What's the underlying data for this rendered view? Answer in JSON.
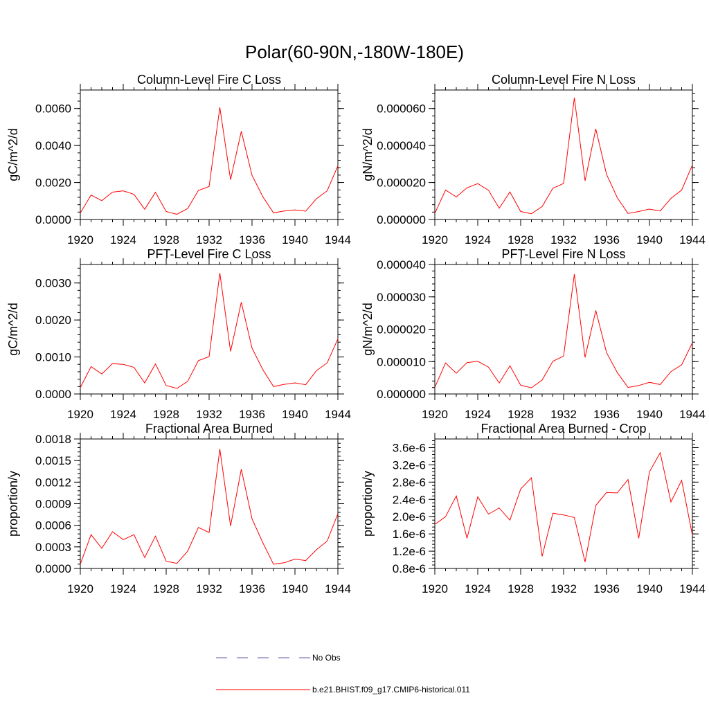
{
  "title": "Polar(60-90N,-180W-180E)",
  "colors": {
    "series": "#ff0000",
    "obs": "#5a5aa8",
    "axis": "#000000"
  },
  "legend": {
    "position": "bottom-center",
    "entries": [
      {
        "label": "No Obs",
        "color": "#5a5aa8",
        "style": "dashed"
      },
      {
        "label": "b.e21.BHIST.f09_g17.CMIP6-historical.011",
        "color": "#ff0000",
        "style": "solid"
      }
    ]
  },
  "chart_data": [
    {
      "type": "line",
      "title": "Column-Level Fire C Loss",
      "ylabel": "gC/m^2/d",
      "xlabel": "",
      "xlim": [
        1920,
        1944
      ],
      "ylim": [
        0,
        0.007
      ],
      "xticks": [
        "1920",
        "1924",
        "1928",
        "1932",
        "1936",
        "1940",
        "1944"
      ],
      "yticks": [
        "0.0000",
        "0.0020",
        "0.0040",
        "0.0060"
      ],
      "ytick_values": [
        0,
        0.002,
        0.004,
        0.006
      ],
      "x": [
        1920,
        1921,
        1922,
        1923,
        1924,
        1925,
        1926,
        1927,
        1928,
        1929,
        1930,
        1931,
        1932,
        1933,
        1934,
        1935,
        1936,
        1937,
        1938,
        1939,
        1940,
        1941,
        1942,
        1943,
        1944
      ],
      "series": [
        {
          "name": "b.e21.BHIST.f09_g17.CMIP6-historical.011",
          "values": [
            0.00035,
            0.00132,
            0.00102,
            0.00148,
            0.00155,
            0.00136,
            0.00055,
            0.00147,
            0.00043,
            0.00028,
            0.00059,
            0.00157,
            0.00178,
            0.00606,
            0.00215,
            0.00477,
            0.00239,
            0.00124,
            0.00036,
            0.00046,
            0.00052,
            0.00045,
            0.00112,
            0.00155,
            0.0029
          ]
        }
      ]
    },
    {
      "type": "line",
      "title": "Column-Level Fire N Loss",
      "ylabel": "gN/m^2/d",
      "xlabel": "",
      "xlim": [
        1920,
        1944
      ],
      "ylim": [
        0,
        7e-05
      ],
      "xticks": [
        "1920",
        "1924",
        "1928",
        "1932",
        "1936",
        "1940",
        "1944"
      ],
      "yticks": [
        "0.000000",
        "0.000020",
        "0.000040",
        "0.000060"
      ],
      "ytick_values": [
        0,
        2e-05,
        4e-05,
        6e-05
      ],
      "x": [
        1920,
        1921,
        1922,
        1923,
        1924,
        1925,
        1926,
        1927,
        1928,
        1929,
        1930,
        1931,
        1932,
        1933,
        1934,
        1935,
        1936,
        1937,
        1938,
        1939,
        1940,
        1941,
        1942,
        1943,
        1944
      ],
      "series": [
        {
          "name": "b.e21.BHIST.f09_g17.CMIP6-historical.011",
          "values": [
            3.3e-06,
            1.59e-05,
            1.22e-05,
            1.71e-05,
            1.94e-05,
            1.58e-05,
            6.1e-06,
            1.49e-05,
            4.3e-06,
            3.1e-06,
            7e-06,
            1.69e-05,
            1.95e-05,
            6.58e-05,
            2.09e-05,
            4.9e-05,
            2.44e-05,
            1.18e-05,
            3.3e-06,
            4.3e-06,
            5.6e-06,
            4.6e-06,
            1.14e-05,
            1.59e-05,
            2.95e-05
          ]
        }
      ]
    },
    {
      "type": "line",
      "title": "PFT-Level Fire C Loss",
      "ylabel": "gC/m^2/d",
      "xlabel": "",
      "xlim": [
        1920,
        1944
      ],
      "ylim": [
        0,
        0.0035
      ],
      "xticks": [
        "1920",
        "1924",
        "1928",
        "1932",
        "1936",
        "1940",
        "1944"
      ],
      "yticks": [
        "0.0000",
        "0.0010",
        "0.0020",
        "0.0030"
      ],
      "ytick_values": [
        0,
        0.001,
        0.002,
        0.003
      ],
      "x": [
        1920,
        1921,
        1922,
        1923,
        1924,
        1925,
        1926,
        1927,
        1928,
        1929,
        1930,
        1931,
        1932,
        1933,
        1934,
        1935,
        1936,
        1937,
        1938,
        1939,
        1940,
        1941,
        1942,
        1943,
        1944
      ],
      "series": [
        {
          "name": "b.e21.BHIST.f09_g17.CMIP6-historical.011",
          "values": [
            0.00017,
            0.00074,
            0.00054,
            0.00082,
            0.0008,
            0.00072,
            0.0003,
            0.00081,
            0.00023,
            0.00015,
            0.00034,
            0.0009,
            0.00101,
            0.00327,
            0.00115,
            0.00248,
            0.00124,
            0.00066,
            0.0002,
            0.00026,
            0.0003,
            0.00025,
            0.00063,
            0.00084,
            0.00149
          ]
        }
      ]
    },
    {
      "type": "line",
      "title": "PFT-Level Fire N Loss",
      "ylabel": "gN/m^2/d",
      "xlabel": "",
      "xlim": [
        1920,
        1944
      ],
      "ylim": [
        0,
        4e-05
      ],
      "xticks": [
        "1920",
        "1924",
        "1928",
        "1932",
        "1936",
        "1940",
        "1944"
      ],
      "yticks": [
        "0.000000",
        "0.000010",
        "0.000020",
        "0.000030",
        "0.000040"
      ],
      "ytick_values": [
        0,
        1e-05,
        2e-05,
        3e-05,
        4e-05
      ],
      "x": [
        1920,
        1921,
        1922,
        1923,
        1924,
        1925,
        1926,
        1927,
        1928,
        1929,
        1930,
        1931,
        1932,
        1933,
        1934,
        1935,
        1936,
        1937,
        1938,
        1939,
        1940,
        1941,
        1942,
        1943,
        1944
      ],
      "series": [
        {
          "name": "b.e21.BHIST.f09_g17.CMIP6-historical.011",
          "values": [
            2e-06,
            9.6e-06,
            6.4e-06,
            9.7e-06,
            1.01e-05,
            8.3e-06,
            3.4e-06,
            8.7e-06,
            2.7e-06,
            1.9e-06,
            4.3e-06,
            1.01e-05,
            1.17e-05,
            3.7e-05,
            1.13e-05,
            2.58e-05,
            1.28e-05,
            6.6e-06,
            2e-06,
            2.6e-06,
            3.6e-06,
            2.9e-06,
            6.9e-06,
            9e-06,
            1.58e-05
          ]
        }
      ]
    },
    {
      "type": "line",
      "title": "Fractional Area Burned",
      "ylabel": "proportion/y",
      "xlabel": "",
      "xlim": [
        1920,
        1944
      ],
      "ylim": [
        0,
        0.0018
      ],
      "xticks": [
        "1920",
        "1924",
        "1928",
        "1932",
        "1936",
        "1940",
        "1944"
      ],
      "yticks": [
        "0.0000",
        "0.0003",
        "0.0006",
        "0.0009",
        "0.0012",
        "0.0015",
        "0.0018"
      ],
      "ytick_values": [
        0,
        0.0003,
        0.0006,
        0.0009,
        0.0012,
        0.0015,
        0.0018
      ],
      "x": [
        1920,
        1921,
        1922,
        1923,
        1924,
        1925,
        1926,
        1927,
        1928,
        1929,
        1930,
        1931,
        1932,
        1933,
        1934,
        1935,
        1936,
        1937,
        1938,
        1939,
        1940,
        1941,
        1942,
        1943,
        1944
      ],
      "series": [
        {
          "name": "b.e21.BHIST.f09_g17.CMIP6-historical.011",
          "values": [
            6e-05,
            0.00047,
            0.00028,
            0.00051,
            0.0004,
            0.00047,
            0.00015,
            0.00045,
            0.0001,
            7e-05,
            0.00024,
            0.00057,
            0.0005,
            0.00166,
            0.00059,
            0.00138,
            0.00069,
            0.00036,
            6e-05,
            8e-05,
            0.00013,
            0.00011,
            0.00026,
            0.00038,
            0.00076
          ]
        }
      ]
    },
    {
      "type": "line",
      "title": "Fractional Area Burned - Crop",
      "ylabel": "proportion/y",
      "xlabel": "",
      "xlim": [
        1920,
        1944
      ],
      "ylim": [
        8e-07,
        3.8e-06
      ],
      "xticks": [
        "1920",
        "1924",
        "1928",
        "1932",
        "1936",
        "1940",
        "1944"
      ],
      "yticks": [
        "0.8e-6",
        "1.2e-6",
        "1.6e-6",
        "2.0e-6",
        "2.4e-6",
        "2.8e-6",
        "3.2e-6",
        "3.6e-6"
      ],
      "ytick_values": [
        8e-07,
        1.2e-06,
        1.6e-06,
        2e-06,
        2.4e-06,
        2.8e-06,
        3.2e-06,
        3.6e-06
      ],
      "x": [
        1920,
        1921,
        1922,
        1923,
        1924,
        1925,
        1926,
        1927,
        1928,
        1929,
        1930,
        1931,
        1932,
        1933,
        1934,
        1935,
        1936,
        1937,
        1938,
        1939,
        1940,
        1941,
        1942,
        1943,
        1944
      ],
      "series": [
        {
          "name": "b.e21.BHIST.f09_g17.CMIP6-historical.011",
          "values": [
            1.82e-06,
            2e-06,
            2.48e-06,
            1.5e-06,
            2.46e-06,
            2.06e-06,
            2.2e-06,
            1.92e-06,
            2.64e-06,
            2.9e-06,
            1.08e-06,
            2.08e-06,
            2.04e-06,
            1.98e-06,
            9.5e-07,
            2.26e-06,
            2.56e-06,
            2.55e-06,
            2.86e-06,
            1.5e-06,
            3.04e-06,
            3.48e-06,
            2.34e-06,
            2.84e-06,
            1.57e-06
          ]
        }
      ]
    }
  ]
}
